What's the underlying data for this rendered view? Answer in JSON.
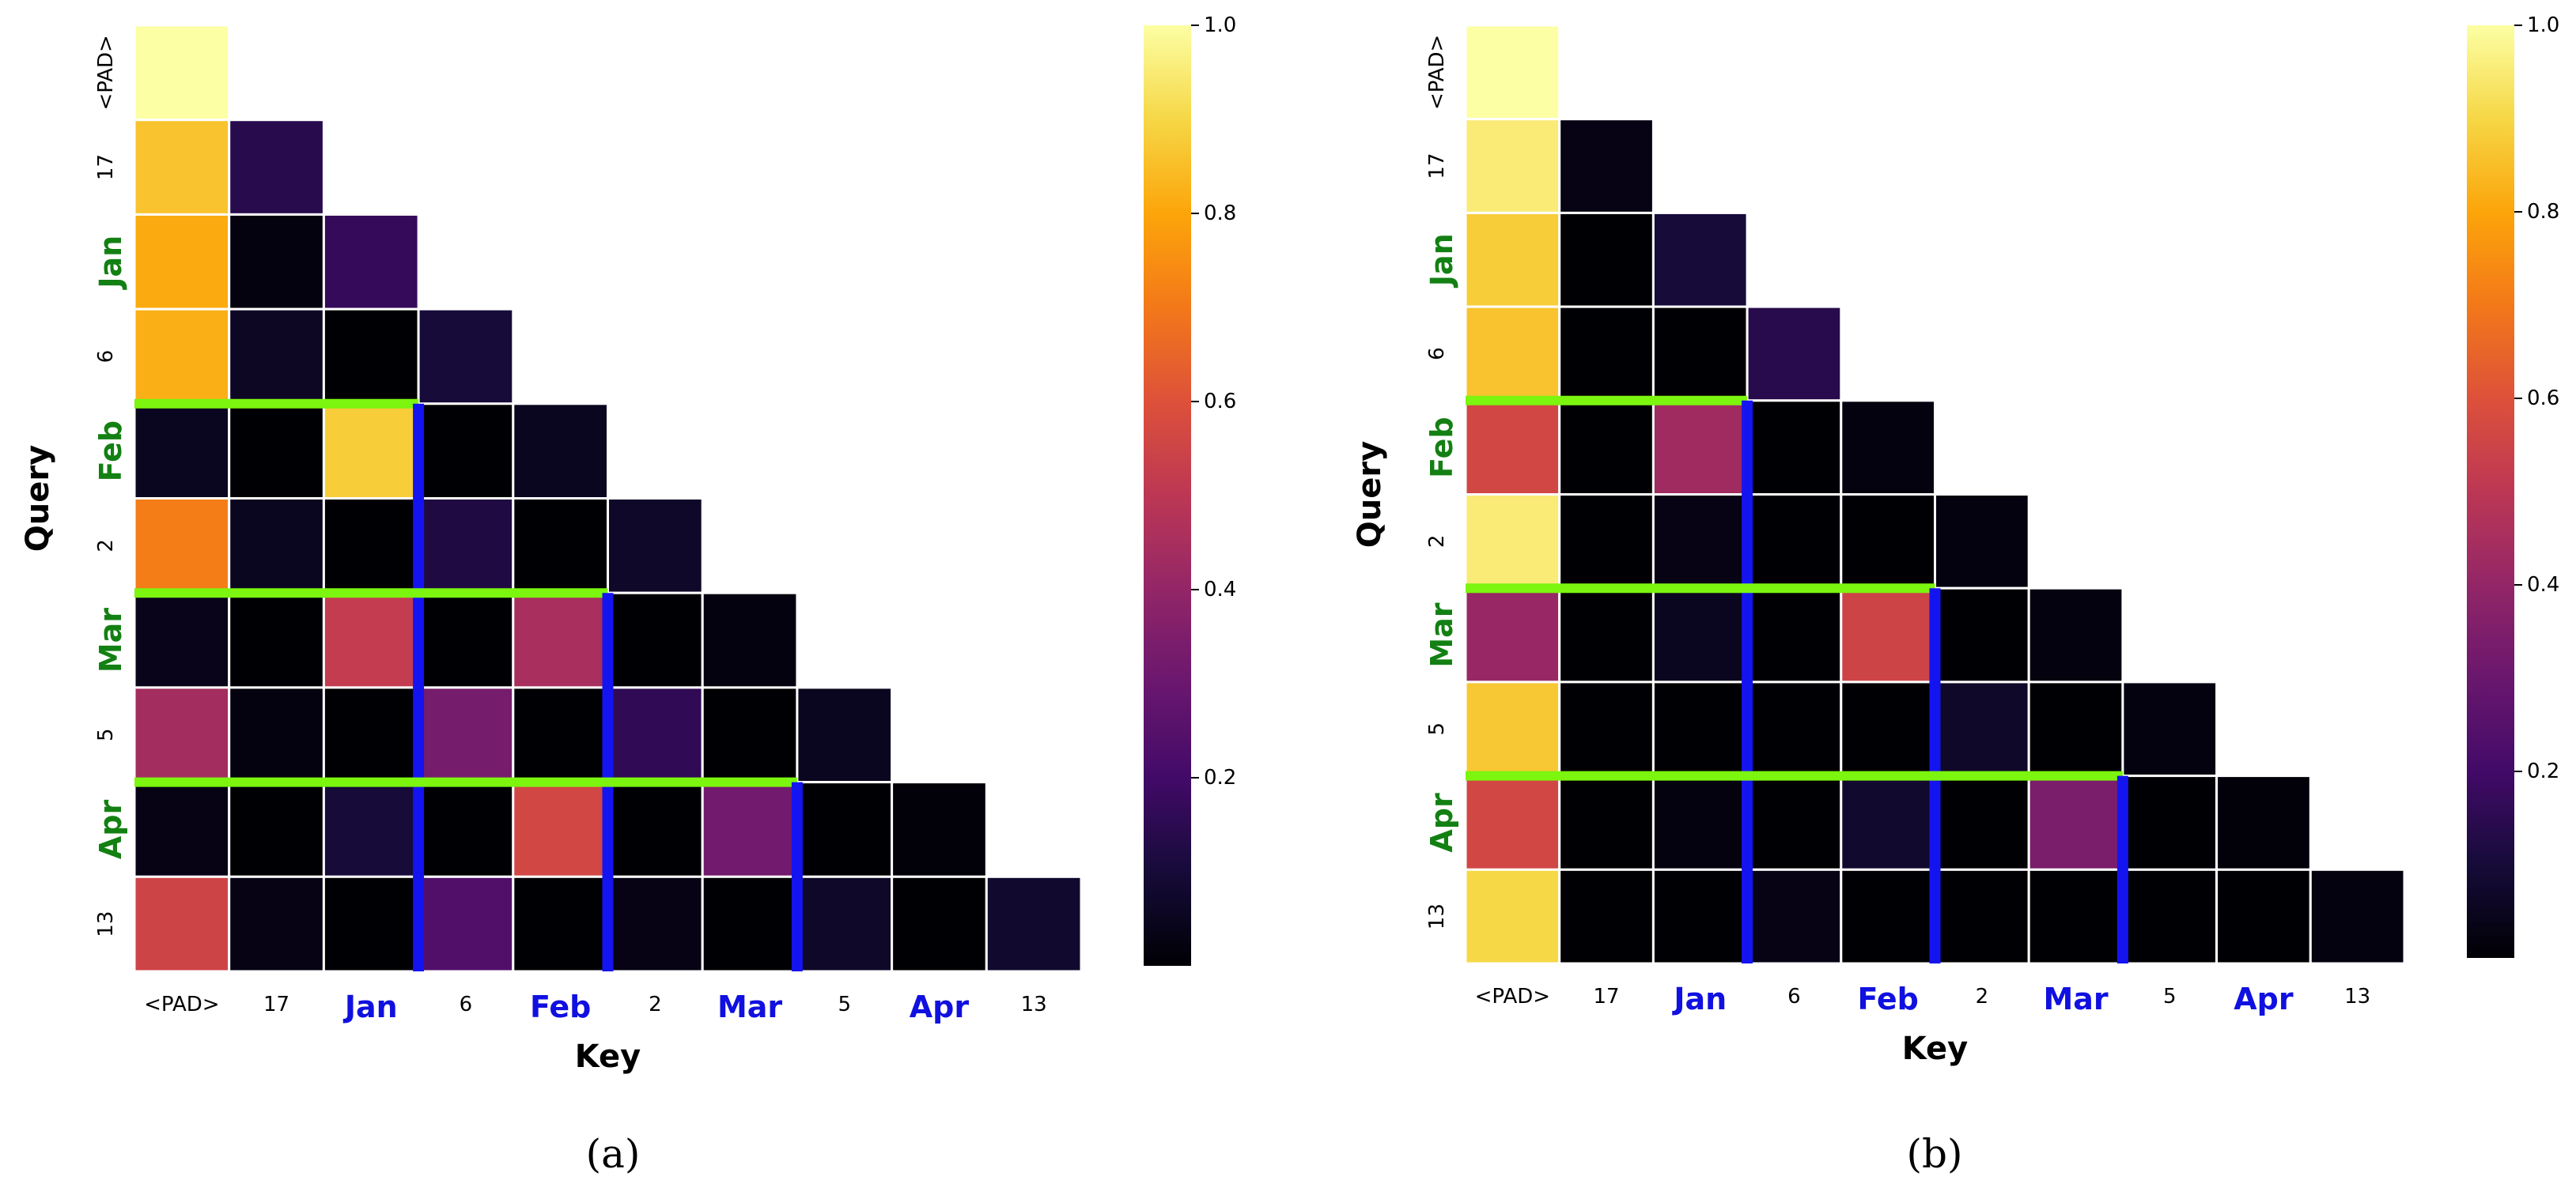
{
  "chart_data": [
    {
      "type": "heatmap",
      "panel_label": "(a)",
      "xlabel": "Key",
      "ylabel": "Query",
      "x_ticks": [
        "<PAD>",
        "17",
        "Jan",
        "6",
        "Feb",
        "2",
        "Mar",
        "5",
        "Apr",
        "13"
      ],
      "y_ticks": [
        "<PAD>",
        "17",
        "Jan",
        "6",
        "Feb",
        "2",
        "Mar",
        "5",
        "Apr",
        "13"
      ],
      "highlighted_tokens": [
        "Jan",
        "Feb",
        "Mar",
        "Apr"
      ],
      "mask": "lower-triangular",
      "colormap": "inferno",
      "colorbar": {
        "min": 0,
        "max": 1.0,
        "ticks": [
          "0.2",
          "0.4",
          "0.6",
          "0.8",
          "1.0"
        ]
      },
      "values": [
        [
          1.0
        ],
        [
          0.86,
          0.14
        ],
        [
          0.81,
          0.02,
          0.17
        ],
        [
          0.82,
          0.06,
          0.0,
          0.1
        ],
        [
          0.05,
          0.0,
          0.88,
          0.0,
          0.05
        ],
        [
          0.71,
          0.05,
          0.0,
          0.12,
          0.0,
          0.07
        ],
        [
          0.04,
          0.0,
          0.52,
          0.0,
          0.45,
          0.0,
          0.02
        ],
        [
          0.44,
          0.02,
          0.0,
          0.33,
          0.0,
          0.16,
          0.0,
          0.05
        ],
        [
          0.03,
          0.0,
          0.1,
          0.0,
          0.56,
          0.0,
          0.32,
          0.0,
          0.01
        ],
        [
          0.55,
          0.03,
          0.0,
          0.24,
          0.0,
          0.03,
          0.0,
          0.07,
          0.0,
          0.08
        ]
      ]
    },
    {
      "type": "heatmap",
      "panel_label": "(b)",
      "xlabel": "Key",
      "ylabel": "Query",
      "x_ticks": [
        "<PAD>",
        "17",
        "Jan",
        "6",
        "Feb",
        "2",
        "Mar",
        "5",
        "Apr",
        "13"
      ],
      "y_ticks": [
        "<PAD>",
        "17",
        "Jan",
        "6",
        "Feb",
        "2",
        "Mar",
        "5",
        "Apr",
        "13"
      ],
      "highlighted_tokens": [
        "Jan",
        "Feb",
        "Mar",
        "Apr"
      ],
      "mask": "lower-triangular",
      "colormap": "inferno",
      "colorbar": {
        "min": 0,
        "max": 1.0,
        "ticks": [
          "0.2",
          "0.4",
          "0.6",
          "0.8",
          "1.0"
        ]
      },
      "values": [
        [
          1.0
        ],
        [
          0.95,
          0.03
        ],
        [
          0.88,
          0.0,
          0.1
        ],
        [
          0.86,
          0.0,
          0.0,
          0.14
        ],
        [
          0.56,
          0.0,
          0.43,
          0.0,
          0.02
        ],
        [
          0.95,
          0.0,
          0.03,
          0.0,
          0.0,
          0.02
        ],
        [
          0.41,
          0.0,
          0.05,
          0.0,
          0.55,
          0.0,
          0.02
        ],
        [
          0.87,
          0.0,
          0.0,
          0.0,
          0.0,
          0.07,
          0.0,
          0.02
        ],
        [
          0.56,
          0.0,
          0.02,
          0.0,
          0.08,
          0.0,
          0.34,
          0.0,
          0.01
        ],
        [
          0.9,
          0.0,
          0.0,
          0.03,
          0.0,
          0.0,
          0.0,
          0.0,
          0.0,
          0.02
        ]
      ]
    }
  ],
  "colors": {
    "query_highlight": "#138013",
    "key_highlight": "#1010e0",
    "green_line": "#7cf50f",
    "blue_line": "#1414f0",
    "cell_border": "#ffffff"
  }
}
